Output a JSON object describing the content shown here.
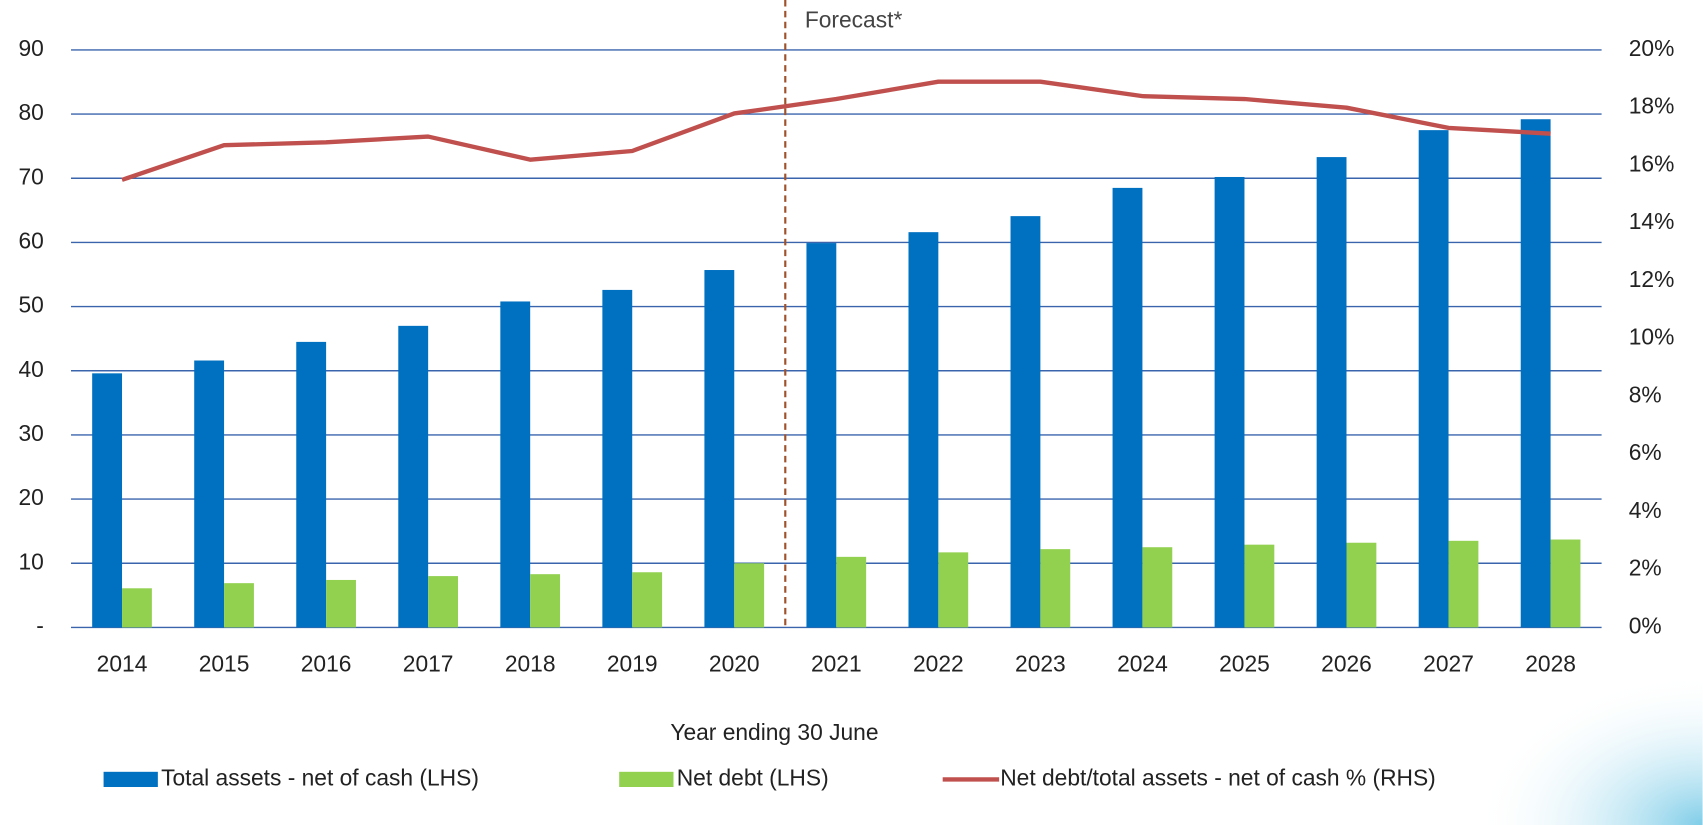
{
  "chart_data": {
    "type": "bar-line",
    "annotation": "Forecast*",
    "x_label": "Year ending 30 June",
    "categories": [
      "2014",
      "2015",
      "2016",
      "2017",
      "2018",
      "2019",
      "2020",
      "2021",
      "2022",
      "2023",
      "2024",
      "2025",
      "2026",
      "2027",
      "2028"
    ],
    "series": [
      {
        "name": "Total assets - net of cash (LHS)",
        "type": "bar",
        "color": "#0070c0",
        "values": [
          39.6,
          41.6,
          44.5,
          47.0,
          50.8,
          52.6,
          55.7,
          59.9,
          61.6,
          64.1,
          68.5,
          70.2,
          73.3,
          77.5,
          79.2
        ]
      },
      {
        "name": "Net debt (LHS)",
        "type": "bar",
        "color": "#92d050",
        "values": [
          6.1,
          6.9,
          7.4,
          8.0,
          8.3,
          8.6,
          10.0,
          11.0,
          11.7,
          12.2,
          12.5,
          12.9,
          13.2,
          13.5,
          13.7
        ]
      },
      {
        "name": "Net debt/total assets - net of cash % (RHS)",
        "type": "line",
        "color": "#c0504d",
        "axis": "y2",
        "values": [
          15.5,
          16.7,
          16.8,
          17.0,
          16.2,
          16.5,
          17.8,
          18.3,
          18.9,
          18.9,
          18.4,
          18.3,
          18.0,
          17.3,
          17.1
        ]
      }
    ],
    "ylim": [
      0,
      90
    ],
    "yticks": [
      {
        "value": 0,
        "label": "-"
      },
      10,
      20,
      30,
      40,
      50,
      60,
      70,
      80,
      90
    ],
    "y2lim": [
      0,
      20
    ],
    "y2ticks": [
      {
        "value": 0,
        "label": "0%"
      },
      {
        "value": 2,
        "label": "2%"
      },
      {
        "value": 4,
        "label": "4%"
      },
      {
        "value": 6,
        "label": "6%"
      },
      {
        "value": 8,
        "label": "8%"
      },
      {
        "value": 10,
        "label": "10%"
      },
      {
        "value": 12,
        "label": "12%"
      },
      {
        "value": 14,
        "label": "14%"
      },
      {
        "value": 16,
        "label": "16%"
      },
      {
        "value": 18,
        "label": "18%"
      },
      {
        "value": 20,
        "label": "20%"
      }
    ],
    "grid": true,
    "grid_color": "#3a65ad",
    "legend": "bottom"
  }
}
